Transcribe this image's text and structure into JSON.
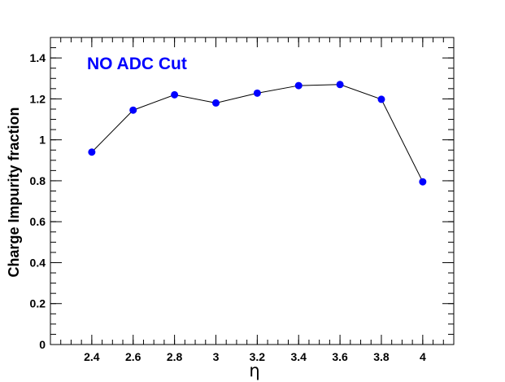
{
  "chart_data": {
    "type": "line",
    "title": "",
    "annotation": "NO ADC Cut",
    "xlabel": "η",
    "ylabel": "Charge Impurity fraction",
    "xlim": [
      2.2,
      4.15
    ],
    "ylim": [
      0,
      1.5
    ],
    "x_ticks": [
      2.4,
      2.6,
      2.8,
      3,
      3.2,
      3.4,
      3.6,
      3.8,
      4
    ],
    "x_tick_labels": [
      "2.4",
      "2.6",
      "2.8",
      "3",
      "3.2",
      "3.4",
      "3.6",
      "3.8",
      "4"
    ],
    "y_ticks": [
      0,
      0.2,
      0.4,
      0.6,
      0.8,
      1,
      1.2,
      1.4
    ],
    "y_tick_labels": [
      "0",
      "0.2",
      "0.4",
      "0.6",
      "0.8",
      "1",
      "1.2",
      "1.4"
    ],
    "x_minor_step": 0.05,
    "y_minor_step": 0.05,
    "grid": false,
    "series": [
      {
        "x": [
          2.4,
          2.6,
          2.8,
          3.0,
          3.2,
          3.4,
          3.6,
          3.8,
          4.0
        ],
        "values": [
          0.94,
          1.145,
          1.22,
          1.18,
          1.228,
          1.265,
          1.27,
          1.198,
          0.795
        ],
        "marker_color": "#0000ff",
        "line_color": "#000000"
      }
    ],
    "colors": {
      "annotation": "#0000ff",
      "axis": "#000000",
      "background": "#ffffff"
    }
  }
}
